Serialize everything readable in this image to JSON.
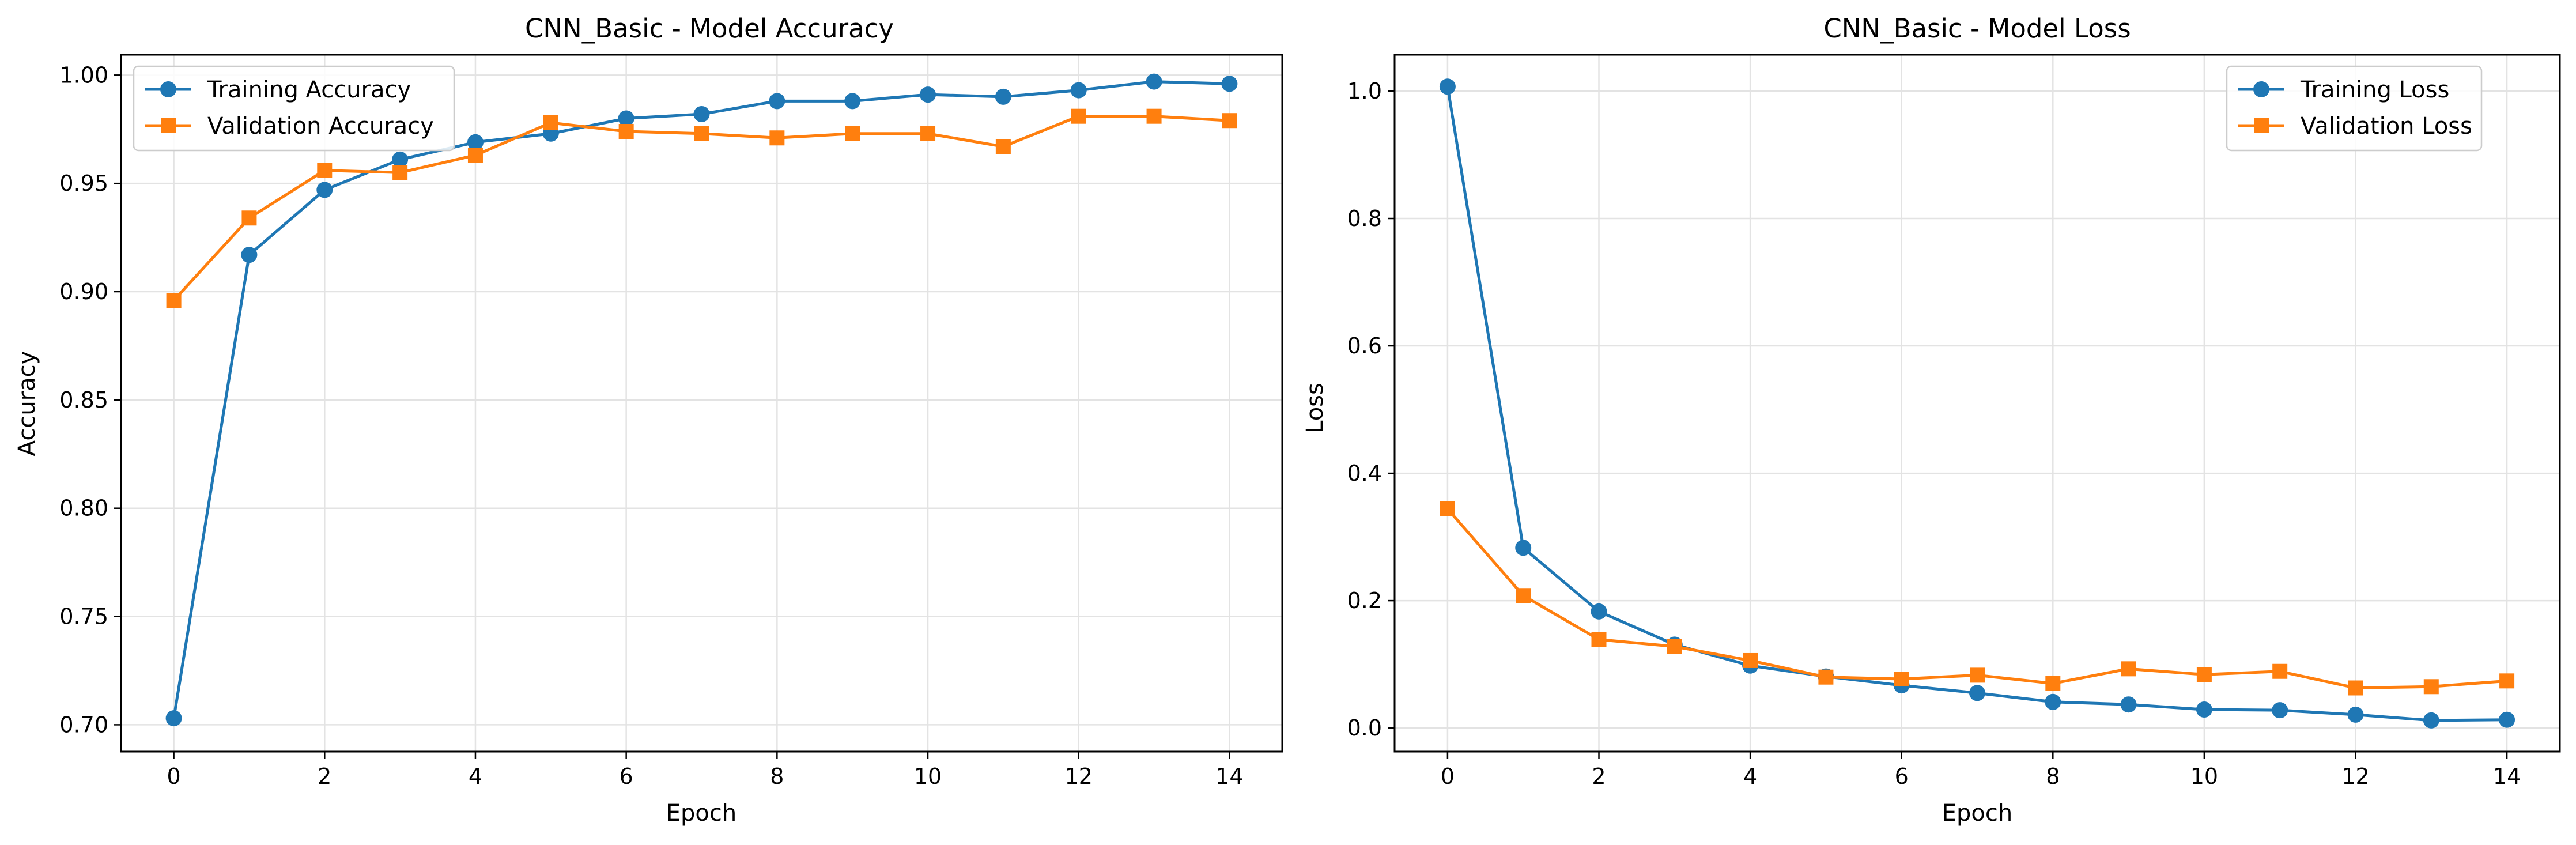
{
  "chart_data": [
    {
      "type": "line",
      "title": "CNN_Basic - Model Accuracy",
      "xlabel": "Epoch",
      "ylabel": "Accuracy",
      "x": [
        0,
        1,
        2,
        3,
        4,
        5,
        6,
        7,
        8,
        9,
        10,
        11,
        12,
        13,
        14
      ],
      "xlim": [
        -0.7,
        14.7
      ],
      "ylim": [
        0.6876,
        1.0094
      ],
      "xticks": [
        "0",
        "2",
        "4",
        "6",
        "8",
        "10",
        "12",
        "14"
      ],
      "yticks": [
        "0.70",
        "0.75",
        "0.80",
        "0.85",
        "0.90",
        "0.95",
        "1.00"
      ],
      "grid": true,
      "legend_position": "upper-left",
      "series": [
        {
          "name": "Training Accuracy",
          "color": "#1f77b4",
          "marker": "circle",
          "values": [
            0.703,
            0.917,
            0.947,
            0.961,
            0.969,
            0.973,
            0.98,
            0.982,
            0.988,
            0.988,
            0.991,
            0.99,
            0.993,
            0.997,
            0.996
          ]
        },
        {
          "name": "Validation Accuracy",
          "color": "#ff7f0e",
          "marker": "square",
          "values": [
            0.896,
            0.934,
            0.956,
            0.955,
            0.963,
            0.978,
            0.974,
            0.973,
            0.971,
            0.973,
            0.973,
            0.967,
            0.981,
            0.981,
            0.979
          ]
        }
      ]
    },
    {
      "type": "line",
      "title": "CNN_Basic - Model Loss",
      "xlabel": "Epoch",
      "ylabel": "Loss",
      "x": [
        0,
        1,
        2,
        3,
        4,
        5,
        6,
        7,
        8,
        9,
        10,
        11,
        12,
        13,
        14
      ],
      "xlim": [
        -0.7,
        14.7
      ],
      "ylim": [
        -0.037,
        1.057
      ],
      "xticks": [
        "0",
        "2",
        "4",
        "6",
        "8",
        "10",
        "12",
        "14"
      ],
      "yticks": [
        "0.0",
        "0.2",
        "0.4",
        "0.6",
        "0.8",
        "1.0"
      ],
      "grid": true,
      "legend_position": "upper-right",
      "series": [
        {
          "name": "Training Loss",
          "color": "#1f77b4",
          "marker": "circle",
          "values": [
            1.007,
            0.283,
            0.183,
            0.131,
            0.098,
            0.081,
            0.067,
            0.055,
            0.041,
            0.037,
            0.029,
            0.028,
            0.021,
            0.012,
            0.013
          ]
        },
        {
          "name": "Validation Loss",
          "color": "#ff7f0e",
          "marker": "square",
          "values": [
            0.344,
            0.208,
            0.139,
            0.128,
            0.106,
            0.08,
            0.077,
            0.083,
            0.07,
            0.093,
            0.084,
            0.089,
            0.063,
            0.065,
            0.074
          ]
        }
      ]
    }
  ]
}
